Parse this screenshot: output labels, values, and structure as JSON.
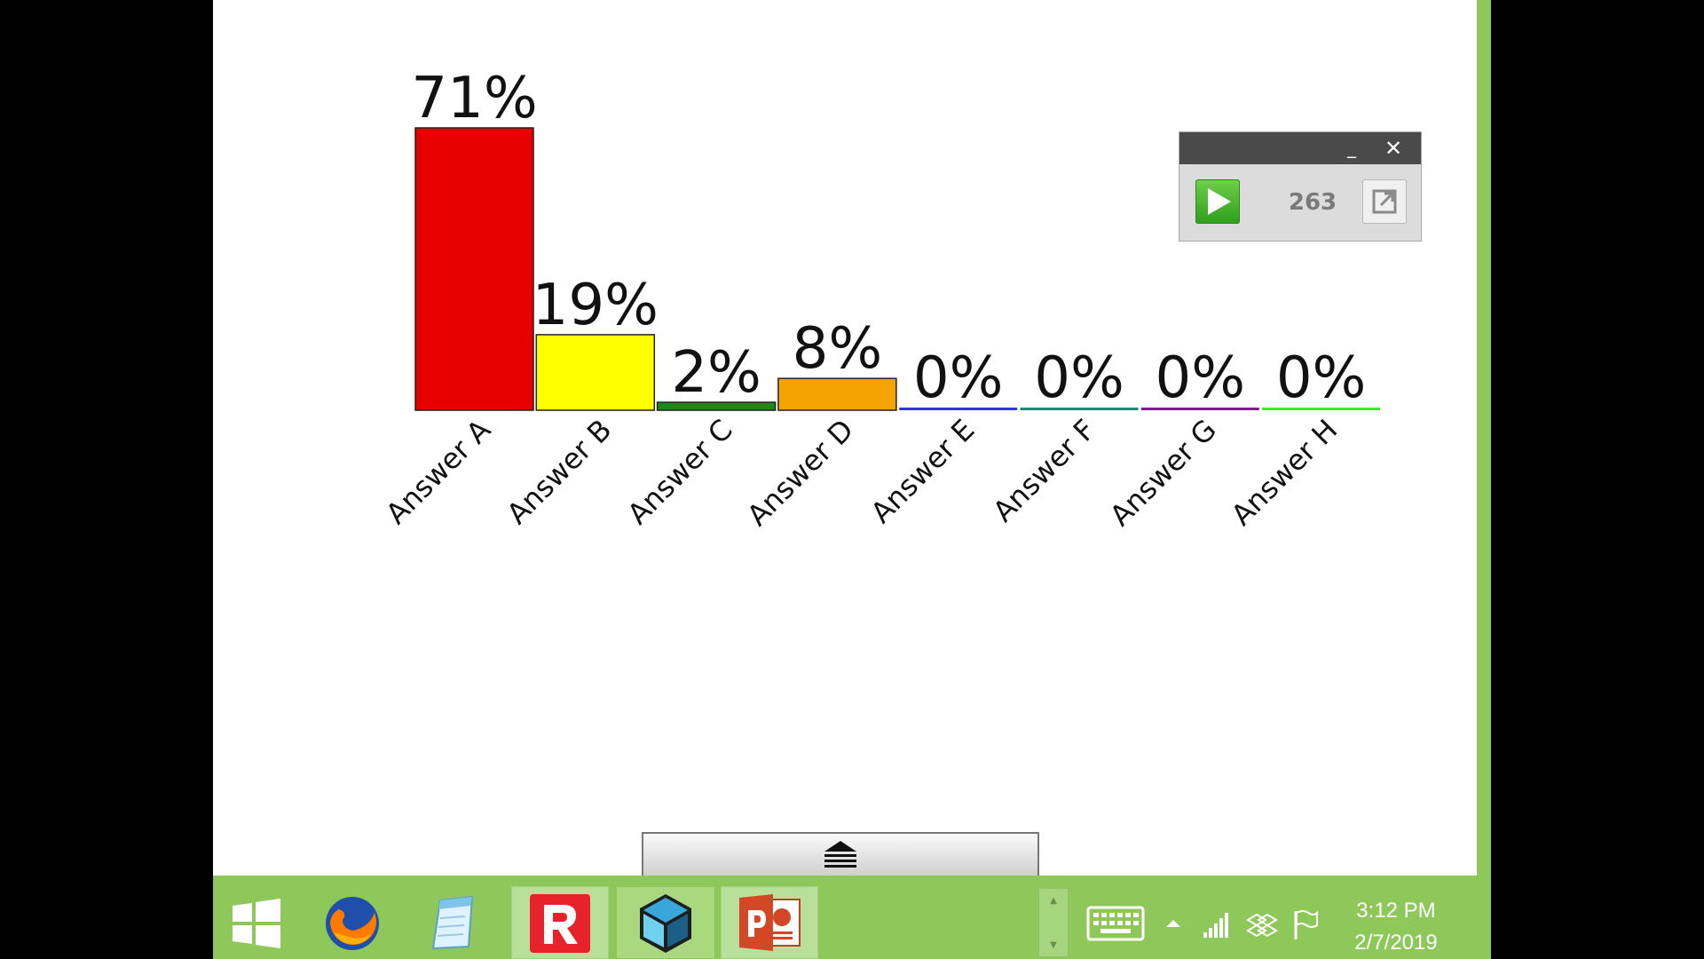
{
  "chart_data": {
    "type": "bar",
    "categories": [
      "Answer A",
      "Answer B",
      "Answer C",
      "Answer D",
      "Answer E",
      "Answer F",
      "Answer G",
      "Answer H"
    ],
    "values": [
      71,
      19,
      2,
      8,
      0,
      0,
      0,
      0
    ],
    "value_labels": [
      "71%",
      "19%",
      "2%",
      "8%",
      "0%",
      "0%",
      "0%",
      "0%"
    ],
    "colors": [
      "#e60000",
      "#ffff00",
      "#1a8a1a",
      "#f5a300",
      "#3333dd",
      "#1f8a7a",
      "#7a1f8a",
      "#33ee33"
    ],
    "ylim": [
      0,
      71
    ],
    "grid": false,
    "legend": "none"
  },
  "poll_widget": {
    "response_count": "263",
    "play_icon": "play-icon",
    "expand_icon": "expand-icon",
    "minimize_label": "_",
    "close_label": "✕"
  },
  "taskbar": {
    "apps": [
      {
        "name": "start",
        "icon": "windows-start-icon"
      },
      {
        "name": "firefox",
        "icon": "firefox-icon"
      },
      {
        "name": "notepad",
        "icon": "notepad-icon"
      },
      {
        "name": "r-app",
        "icon": "r-app-icon"
      },
      {
        "name": "cube-app",
        "icon": "cube-app-icon"
      },
      {
        "name": "powerpoint",
        "icon": "powerpoint-icon"
      }
    ],
    "tray": {
      "keyboard_icon": "keyboard-icon",
      "up_arrow_icon": "chevron-up-icon",
      "signal_icon": "signal-icon",
      "dropbox_icon": "dropbox-icon",
      "flag_icon": "flag-icon"
    },
    "clock": {
      "time": "3:12 PM",
      "date": "2/7/2019"
    }
  }
}
